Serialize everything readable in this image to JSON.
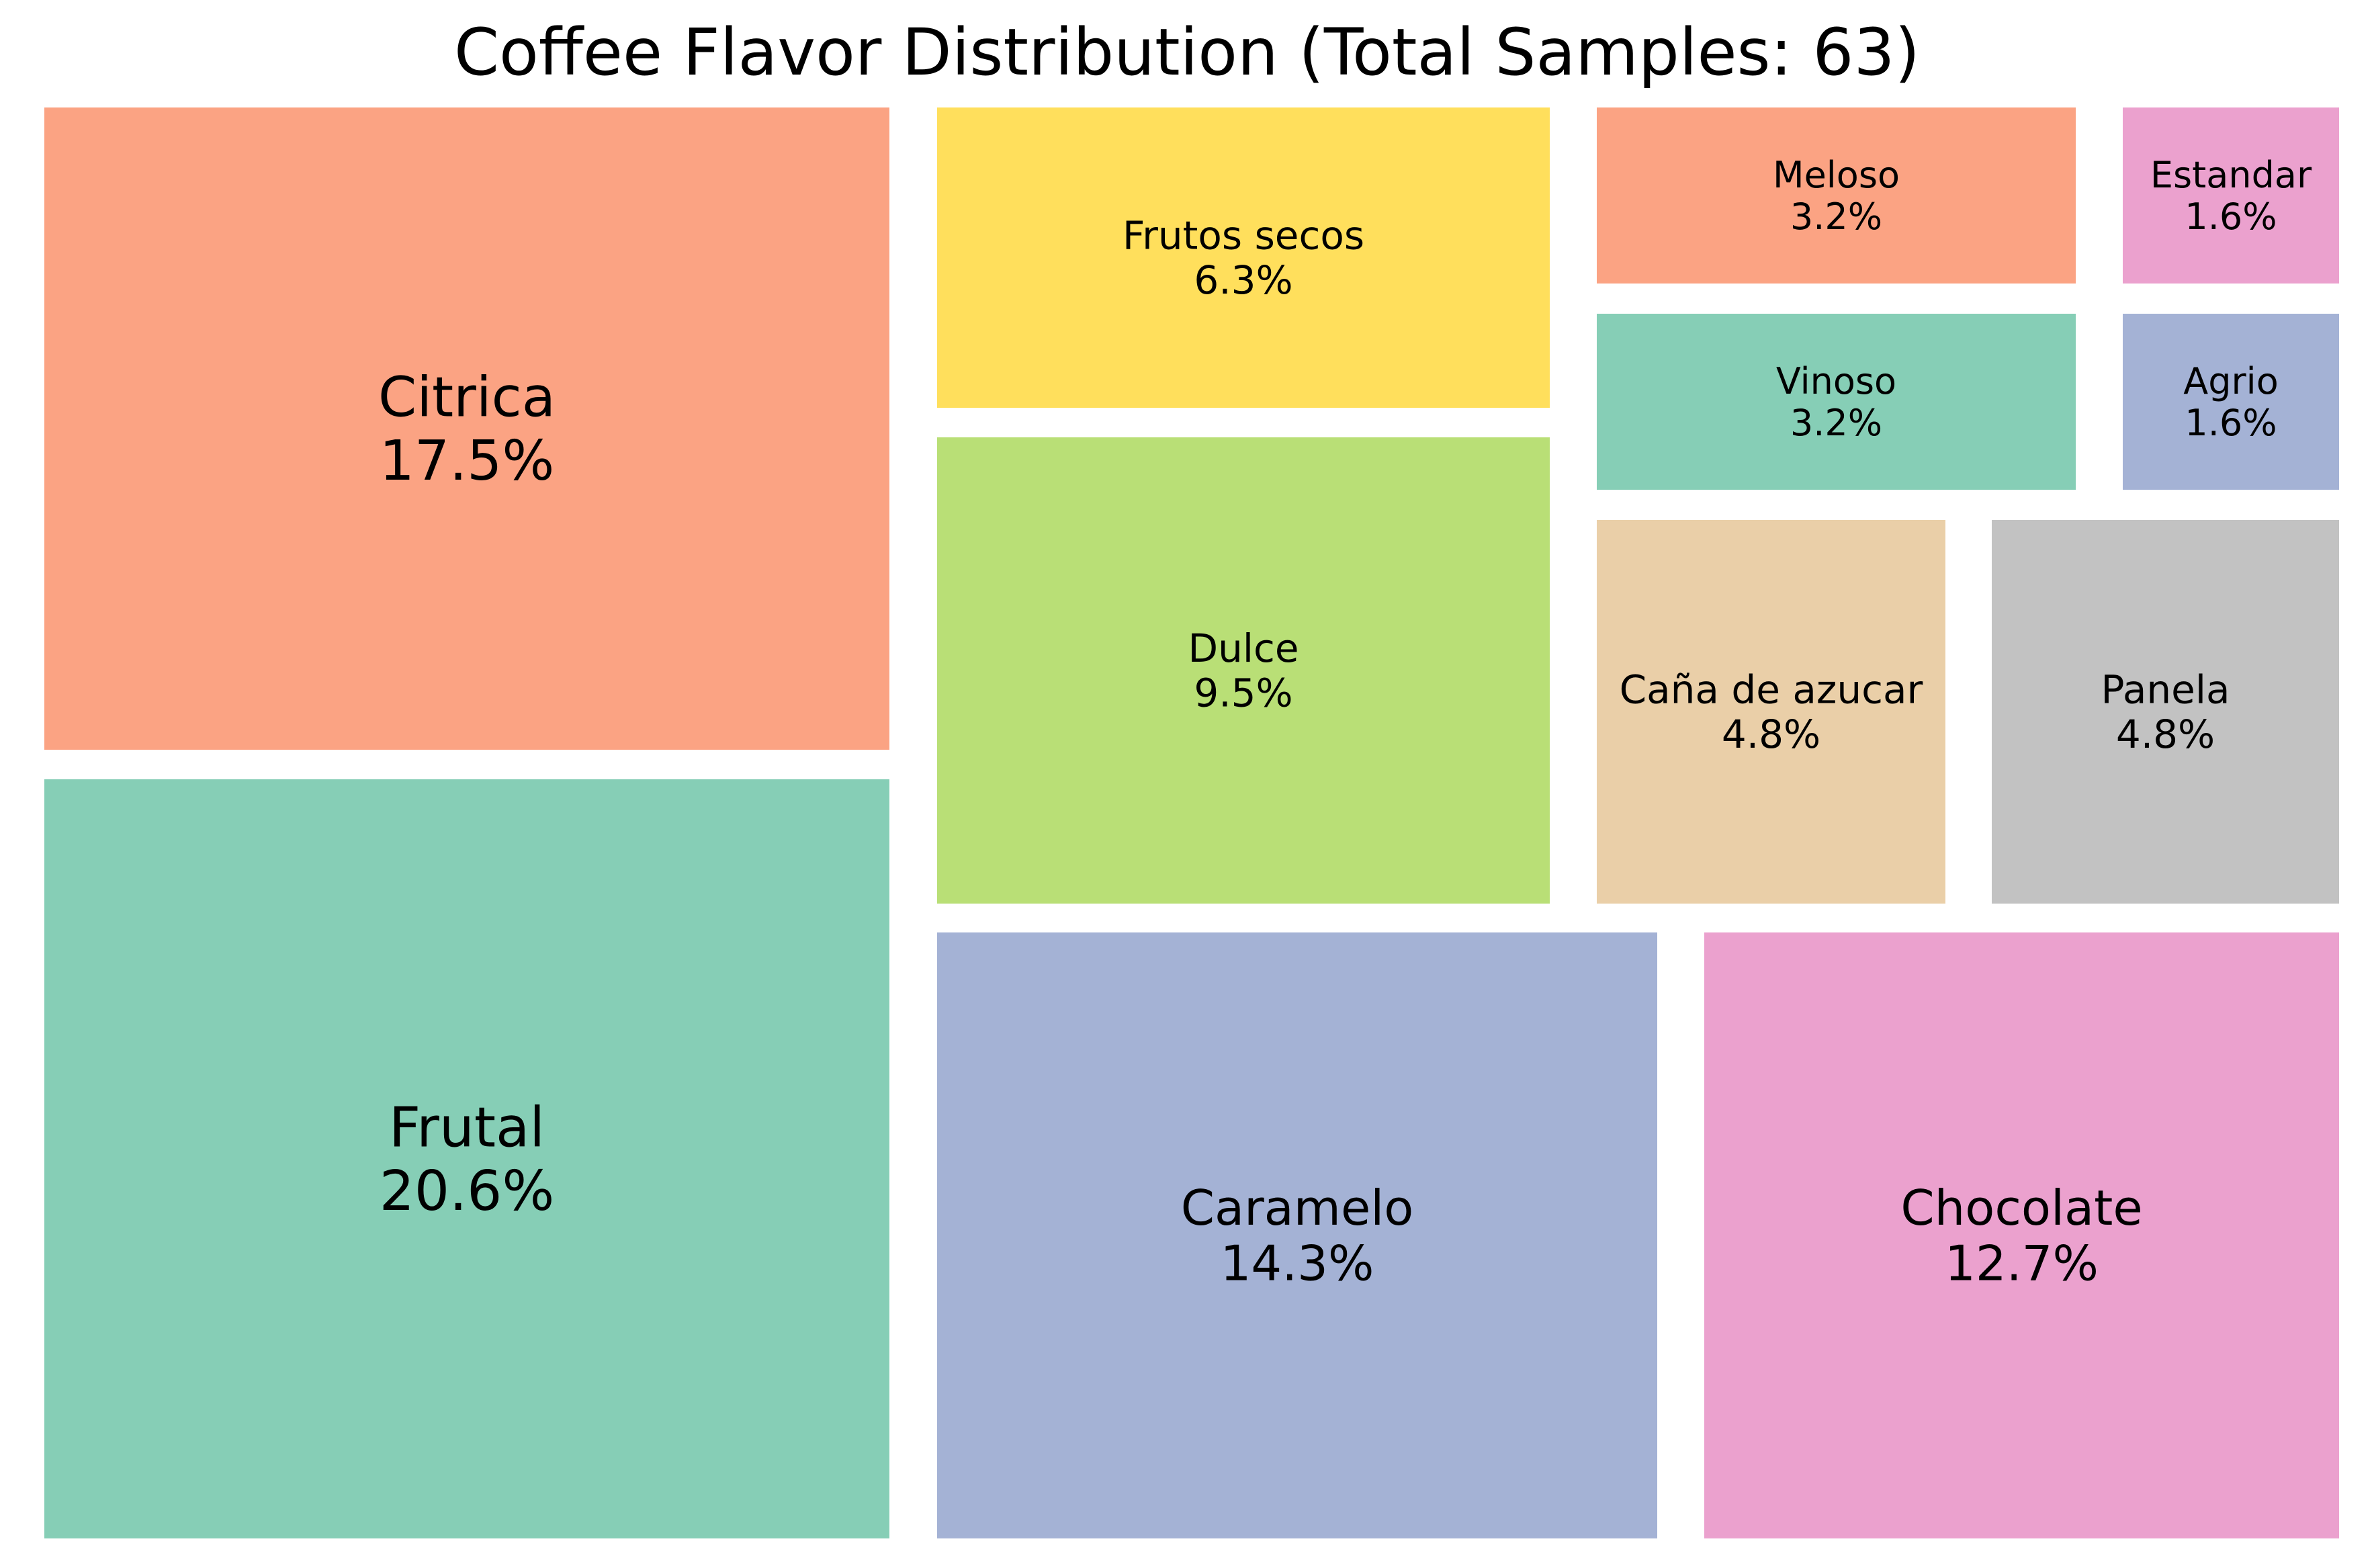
{
  "chart_data": {
    "type": "treemap",
    "title": "Coffee Flavor Distribution (Total Samples: 63)",
    "total_samples": 63,
    "items": [
      {
        "label": "Frutal",
        "percent_label": "20.6%",
        "value": 20.6,
        "color": "#86CEB6"
      },
      {
        "label": "Citrica",
        "percent_label": "17.5%",
        "value": 17.5,
        "color": "#FBA383"
      },
      {
        "label": "Caramelo",
        "percent_label": "14.3%",
        "value": 14.3,
        "color": "#A4B2D5"
      },
      {
        "label": "Chocolate",
        "percent_label": "12.7%",
        "value": 12.7,
        "color": "#EBA1CE"
      },
      {
        "label": "Dulce",
        "percent_label": "9.5%",
        "value": 9.5,
        "color": "#B9DF76"
      },
      {
        "label": "Frutos secos",
        "percent_label": "6.3%",
        "value": 6.3,
        "color": "#FFDF5C"
      },
      {
        "label": "Caña de azucar",
        "percent_label": "4.8%",
        "value": 4.8,
        "color": "#EACFA8"
      },
      {
        "label": "Panela",
        "percent_label": "4.8%",
        "value": 4.8,
        "color": "#C2C2C2"
      },
      {
        "label": "Meloso",
        "percent_label": "3.2%",
        "value": 3.2,
        "color": "#FBA383"
      },
      {
        "label": "Vinoso",
        "percent_label": "3.2%",
        "value": 3.2,
        "color": "#86CEB6"
      },
      {
        "label": "Estandar",
        "percent_label": "1.6%",
        "value": 1.6,
        "color": "#EBA1CE"
      },
      {
        "label": "Agrio",
        "percent_label": "1.6%",
        "value": 1.6,
        "color": "#A4B2D5"
      }
    ]
  }
}
